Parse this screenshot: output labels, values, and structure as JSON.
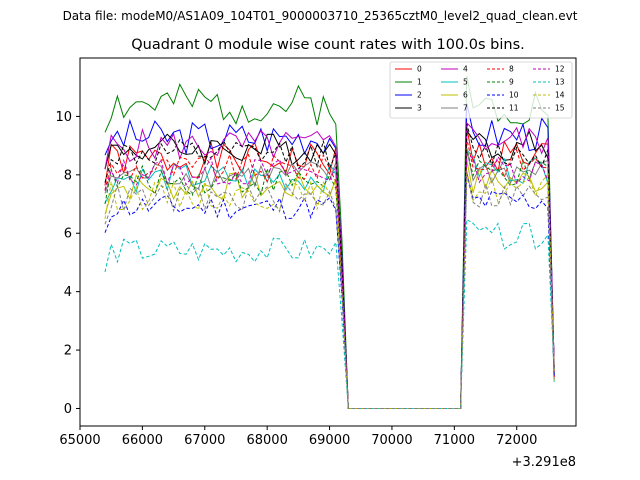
{
  "suptitle": "Data file: modeM0/AS1A09_104T01_9000003710_25365cztM0_level2_quad_clean.evt",
  "chart_data": {
    "type": "line",
    "title": "Quadrant 0 module wise count rates with 100.0s bins.",
    "xlabel": "",
    "ylabel": "",
    "x_offset_label": "+3.291e8",
    "xlim": [
      65000,
      72950
    ],
    "ylim": [
      -0.6,
      12.0
    ],
    "xticks": [
      65000,
      66000,
      67000,
      68000,
      69000,
      70000,
      71000,
      72000
    ],
    "xtick_labels": [
      "65000",
      "66000",
      "67000",
      "68000",
      "69000",
      "70000",
      "71000",
      "72000"
    ],
    "yticks": [
      0,
      2,
      4,
      6,
      8,
      10
    ],
    "ytick_labels": [
      "0",
      "2",
      "4",
      "6",
      "8",
      "10"
    ],
    "grid": false,
    "legend_position": "top-right",
    "bin_width_s": 100.0,
    "active_segments": [
      {
        "start": 65400,
        "end": 69100,
        "n_bins": 38
      },
      {
        "start": 71200,
        "end": 72500,
        "n_bins": 14
      }
    ],
    "gap": {
      "start": 69300,
      "end": 71100
    },
    "series": [
      {
        "name": "0",
        "color": "#ff0000",
        "dash": "solid",
        "base": 8.5,
        "second_base": 8.7,
        "noise": 0.3,
        "seed": 1
      },
      {
        "name": "1",
        "color": "#008000",
        "dash": "solid",
        "base": 10.4,
        "second_base": 10.4,
        "noise": 0.35,
        "seed": 2
      },
      {
        "name": "2",
        "color": "#0000ff",
        "dash": "solid",
        "base": 9.3,
        "second_base": 9.4,
        "noise": 0.3,
        "seed": 3
      },
      {
        "name": "3",
        "color": "#000000",
        "dash": "solid",
        "base": 8.9,
        "second_base": 9.0,
        "noise": 0.28,
        "seed": 4
      },
      {
        "name": "4",
        "color": "#bf00bf",
        "dash": "solid",
        "base": 9.0,
        "second_base": 9.2,
        "noise": 0.28,
        "seed": 5
      },
      {
        "name": "5",
        "color": "#00bfbf",
        "dash": "solid",
        "base": 7.9,
        "second_base": 8.2,
        "noise": 0.25,
        "seed": 6
      },
      {
        "name": "6",
        "color": "#bfbf00",
        "dash": "solid",
        "base": 7.6,
        "second_base": 7.8,
        "noise": 0.25,
        "seed": 7
      },
      {
        "name": "7",
        "color": "#808080",
        "dash": "solid",
        "base": 8.0,
        "second_base": 8.1,
        "noise": 0.25,
        "seed": 8
      },
      {
        "name": "8",
        "color": "#ff0000",
        "dash": "dashed",
        "base": 8.2,
        "second_base": 8.4,
        "noise": 0.25,
        "seed": 9
      },
      {
        "name": "9",
        "color": "#008000",
        "dash": "dashed",
        "base": 7.8,
        "second_base": 8.0,
        "noise": 0.25,
        "seed": 10
      },
      {
        "name": "10",
        "color": "#0000ff",
        "dash": "dashed",
        "base": 6.9,
        "second_base": 7.1,
        "noise": 0.22,
        "seed": 11
      },
      {
        "name": "11",
        "color": "#000000",
        "dash": "dashed",
        "base": 8.7,
        "second_base": 8.7,
        "noise": 0.25,
        "seed": 12
      },
      {
        "name": "12",
        "color": "#bf00bf",
        "dash": "dashed",
        "base": 8.1,
        "second_base": 8.2,
        "noise": 0.25,
        "seed": 13
      },
      {
        "name": "13",
        "color": "#00bfbf",
        "dash": "dashed",
        "base": 5.4,
        "second_base": 5.9,
        "noise": 0.22,
        "seed": 14
      },
      {
        "name": "14",
        "color": "#bfbf00",
        "dash": "dashed",
        "base": 7.3,
        "second_base": 7.5,
        "noise": 0.25,
        "seed": 15
      },
      {
        "name": "15",
        "color": "#808080",
        "dash": "dashed",
        "base": 7.2,
        "second_base": 7.3,
        "noise": 0.25,
        "seed": 16
      }
    ]
  }
}
